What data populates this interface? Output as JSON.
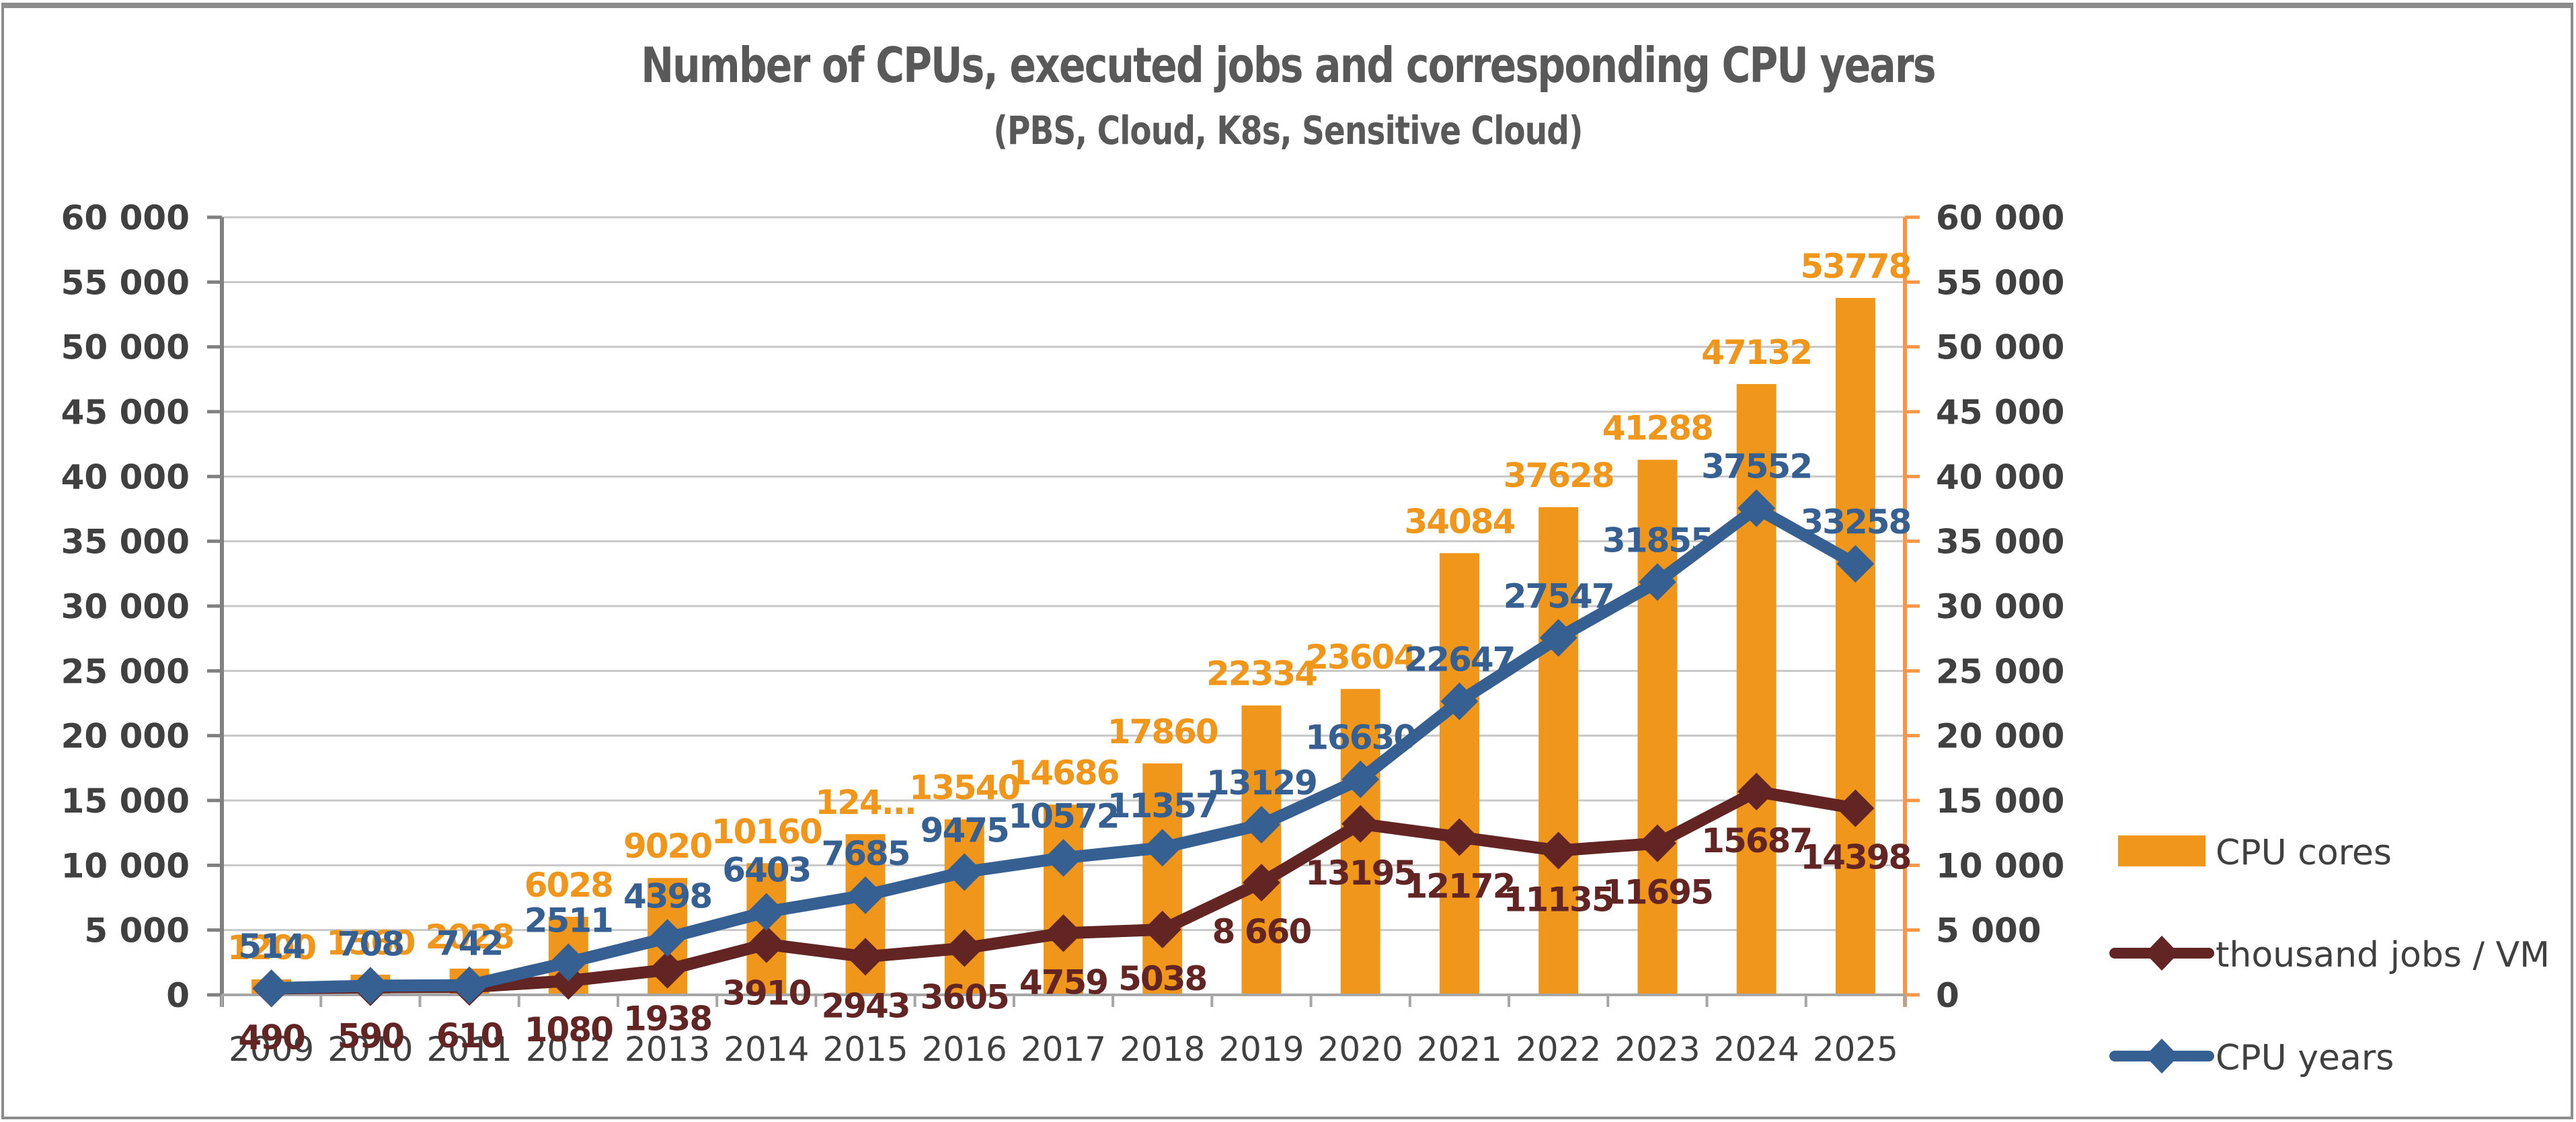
{
  "chart_data": {
    "type": "bar",
    "title": "Number of CPUs, executed jobs and corresponding CPU years",
    "subtitle": "(PBS, Cloud, K8s, Sensitive Cloud)",
    "xlabel": "",
    "ylabel": "",
    "categories": [
      "2009",
      "2010",
      "2011",
      "2012",
      "2013",
      "2014",
      "2015",
      "2016",
      "2017",
      "2018",
      "2019",
      "2020",
      "2021",
      "2022",
      "2023",
      "2024",
      "2025"
    ],
    "y_left": {
      "range": [
        0,
        60000
      ],
      "ticks": [
        "0",
        "5 000",
        "10 000",
        "15 000",
        "20 000",
        "25 000",
        "30 000",
        "35 000",
        "40 000",
        "45 000",
        "50 000",
        "55 000",
        "60 000"
      ]
    },
    "y_right": {
      "range": [
        0,
        60000
      ],
      "ticks": [
        "0",
        "5 000",
        "10 000",
        "15 000",
        "20 000",
        "25 000",
        "30 000",
        "35 000",
        "40 000",
        "45 000",
        "50 000",
        "55 000",
        "60 000"
      ]
    },
    "grid": true,
    "legend_position": "right",
    "series": [
      {
        "name": "CPU cores",
        "kind": "bar",
        "color": "#F0961A",
        "values": [
          1200,
          1560,
          2028,
          6028,
          9020,
          10160,
          12400,
          13540,
          14686,
          17860,
          22334,
          23604,
          34084,
          37628,
          41288,
          47132,
          53778
        ],
        "labels": [
          "1200",
          "1560",
          "2028",
          "6028",
          "9020",
          "10160",
          "124...",
          "13540",
          "14686",
          "17860",
          "22334",
          "23604",
          "34084",
          "37628",
          "41288",
          "47132",
          "53778"
        ]
      },
      {
        "name": "thousand jobs / VM",
        "kind": "line",
        "color": "#632523",
        "values": [
          490,
          590,
          610,
          1080,
          1938,
          3910,
          2943,
          3605,
          4759,
          5038,
          8660,
          13195,
          12172,
          11135,
          11695,
          15687,
          14398
        ],
        "labels": [
          "490",
          "590",
          "610",
          "1080",
          "1938",
          "3910",
          "2943",
          "3605",
          "4759",
          "5038",
          "8 660",
          "13195",
          "12172",
          "11135",
          "11695",
          "15687",
          "14398"
        ]
      },
      {
        "name": "CPU years",
        "kind": "line",
        "color": "#376092",
        "values": [
          514,
          708,
          742,
          2511,
          4398,
          6403,
          7685,
          9475,
          10572,
          11357,
          13129,
          16630,
          22647,
          27547,
          31855,
          37552,
          33258
        ],
        "labels": [
          "514",
          "708",
          "742",
          "2511",
          "4398",
          "6403",
          "7685",
          "9475",
          "10572",
          "11357",
          "13129",
          "16630",
          "22647",
          "27547",
          "31855",
          "37552",
          "33258"
        ]
      }
    ]
  }
}
